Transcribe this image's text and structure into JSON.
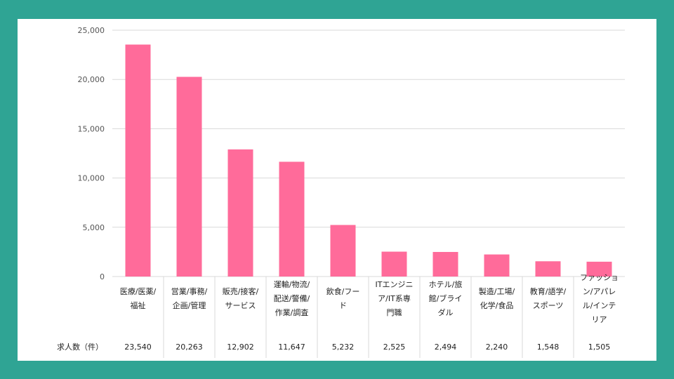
{
  "colors": {
    "background": "#2fa494",
    "bar": "#ff6b9a",
    "grid": "#d9d9d9"
  },
  "chart_data": {
    "type": "bar",
    "yticks": [
      "25,000",
      "20,000",
      "15,000",
      "10,000",
      "5,000",
      "0"
    ],
    "ylim": [
      0,
      25000
    ],
    "grid": true,
    "categories": [
      [
        "医療/医薬/",
        "福祉"
      ],
      [
        "営業/事務/",
        "企画/管理"
      ],
      [
        "販売/接客/",
        "サービス"
      ],
      [
        "運輸/物流/",
        "配送/警備/",
        "作業/調査"
      ],
      [
        "飲食/フー",
        "ド"
      ],
      [
        "ITエンジニ",
        "ア/IT系専",
        "門職"
      ],
      [
        "ホテル/旅",
        "館/ブライ",
        "ダル"
      ],
      [
        "製造/工場/",
        "化学/食品"
      ],
      [
        "教育/語学/",
        "スポーツ"
      ],
      [
        "ファッショ",
        "ン/アパレ",
        "ル/インテ",
        "リア"
      ]
    ],
    "values": [
      23540,
      20263,
      12902,
      11647,
      5232,
      2525,
      2494,
      2240,
      1548,
      1505
    ],
    "table": {
      "row_label": "求人数（件）",
      "cells": [
        "23,540",
        "20,263",
        "12,902",
        "11,647",
        "5,232",
        "2,525",
        "2,494",
        "2,240",
        "1,548",
        "1,505"
      ]
    }
  }
}
